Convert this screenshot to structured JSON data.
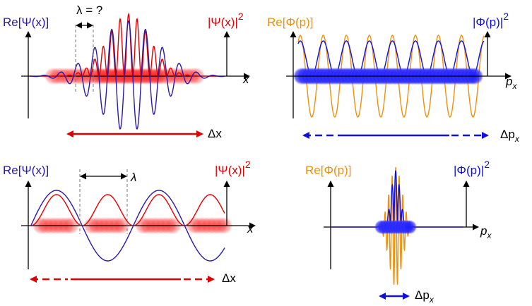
{
  "colors": {
    "psi": "#2a1aa8",
    "psi_sq": "#e00000",
    "phi": "#f0900a",
    "phi_sq": "#1010e0",
    "axis": "#000000",
    "guide": "#777777"
  },
  "panels": {
    "top_left": {
      "re_label": "Re[Ψ(x)]",
      "sq_label": "|Ψ(x)|",
      "sq_exp": "2",
      "axis_label": "x",
      "lambda_label": "λ = ?",
      "delta_label": "Δx"
    },
    "top_right": {
      "re_label": "Re[Φ(p)]",
      "sq_label": "|Φ(p)|",
      "sq_exp": "2",
      "axis_label": "p",
      "axis_sub": "x",
      "delta_label": "Δp",
      "delta_sub": "x"
    },
    "bottom_left": {
      "re_label": "Re[Ψ(x)]",
      "sq_label": "|Ψ(x)|",
      "sq_exp": "2",
      "axis_label": "x",
      "lambda_label": "λ",
      "delta_label": "Δx"
    },
    "bottom_right": {
      "re_label": "Re[Φ(p)]",
      "sq_label": "|Φ(p)|",
      "sq_exp": "2",
      "axis_label": "p",
      "axis_sub": "x",
      "delta_label": "Δp",
      "delta_sub": "x"
    }
  }
}
